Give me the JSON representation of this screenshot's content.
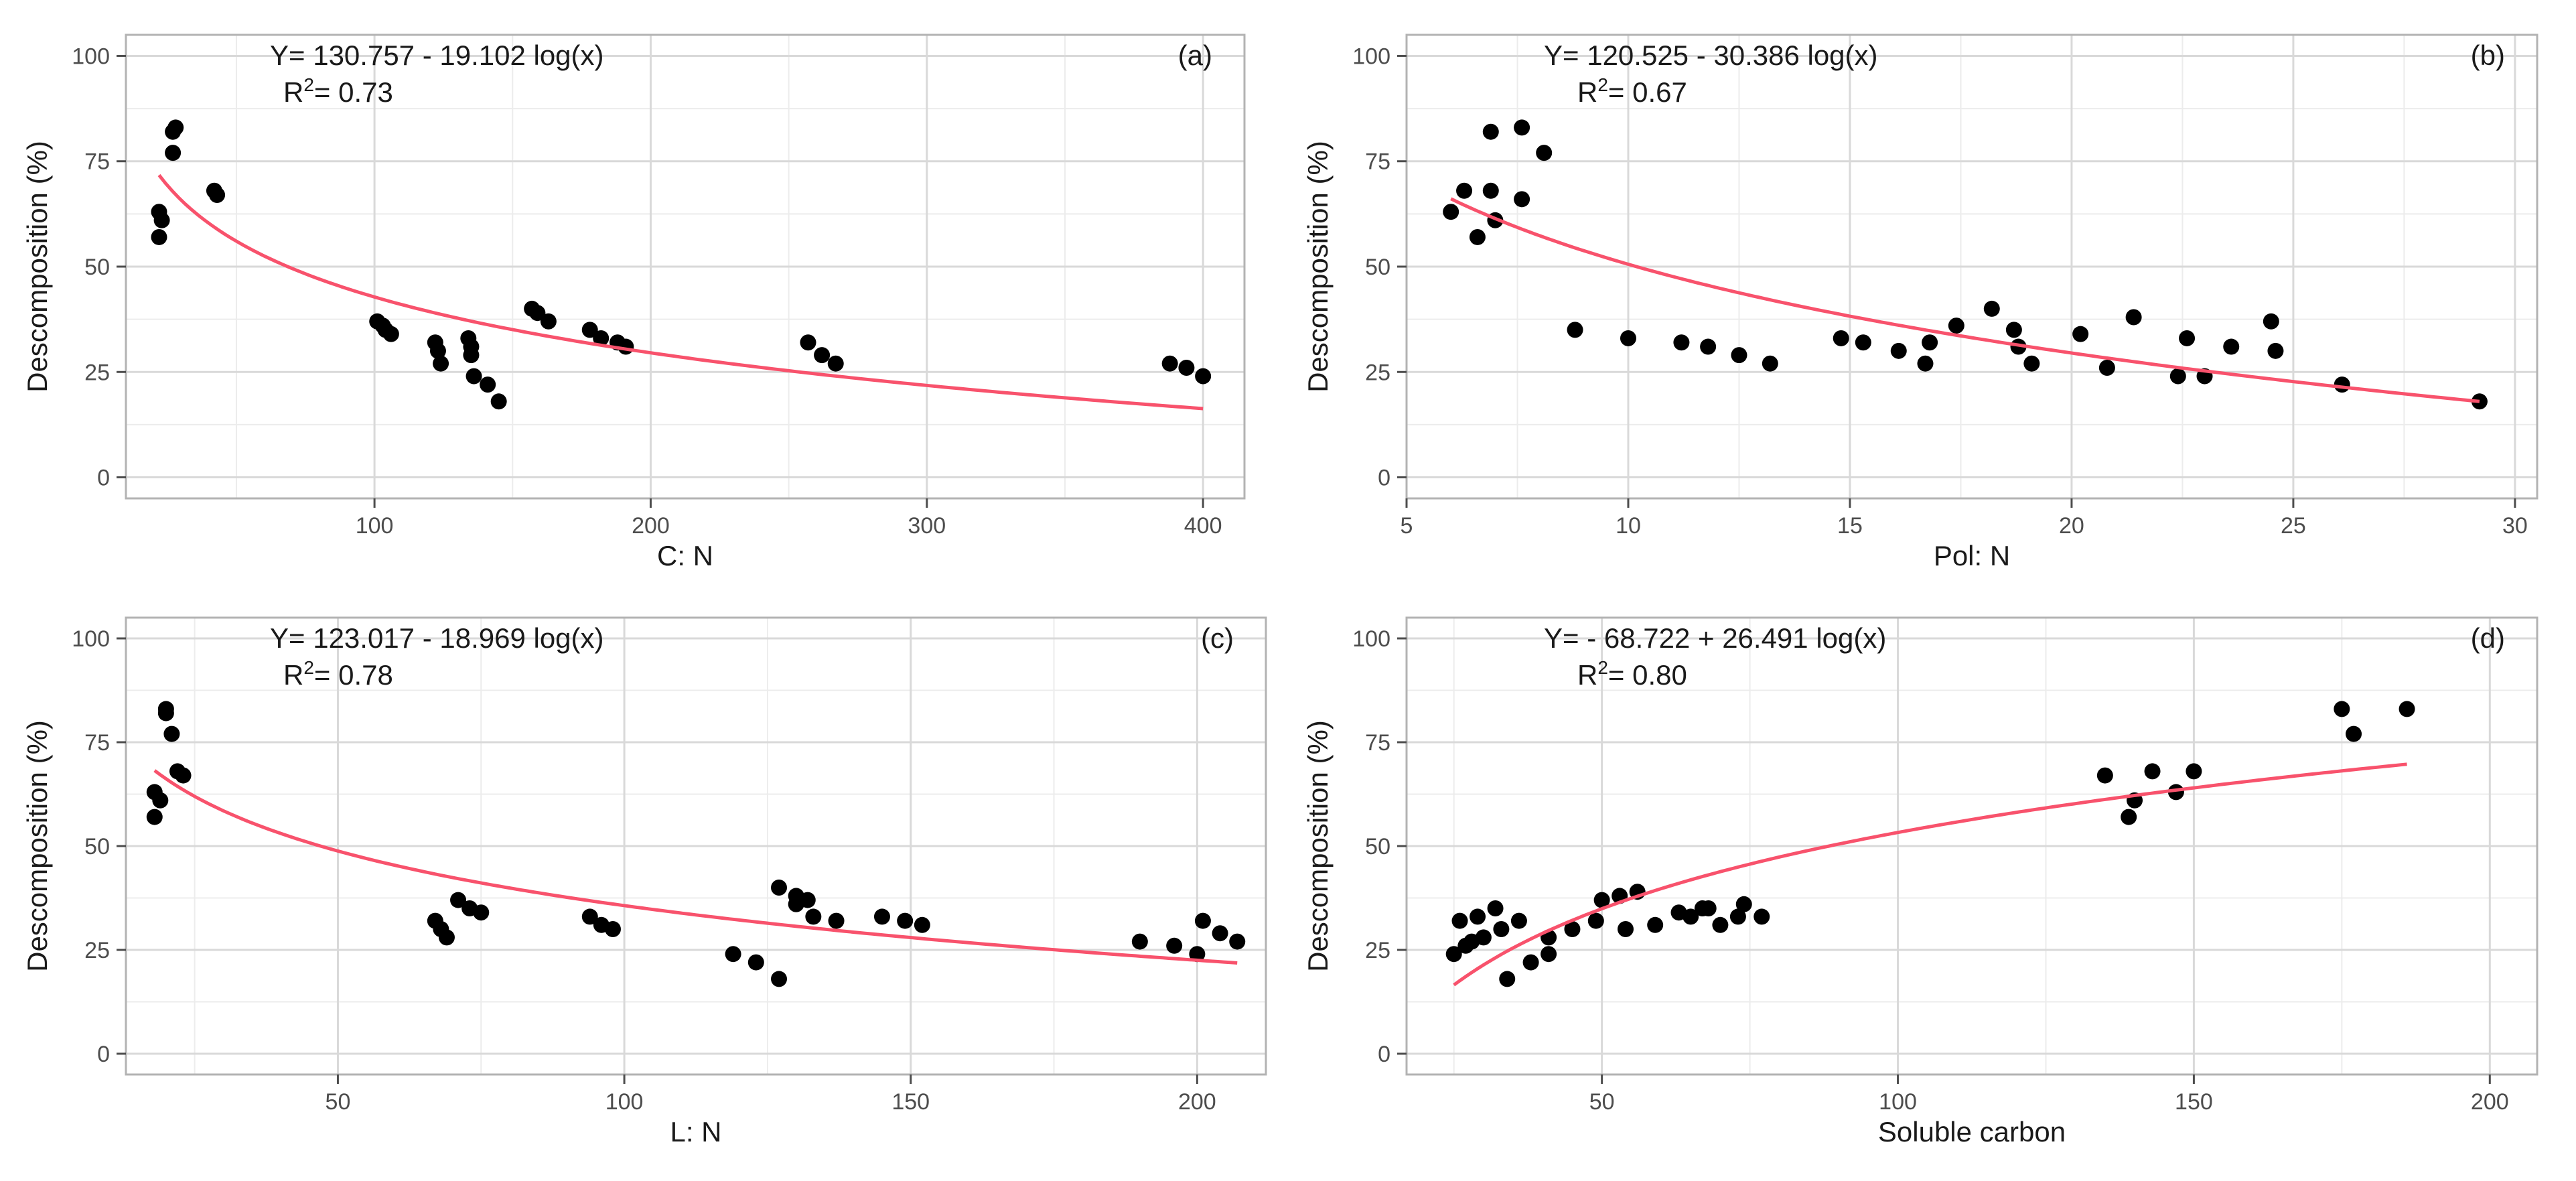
{
  "figure": {
    "yaxis_label": "Descomposition (%)"
  },
  "colors": {
    "points": "#000000",
    "fit": "#f8526c",
    "grid_major": "#d9d9d9",
    "grid_minor": "#ececec",
    "border": "#b3b3b3"
  },
  "chart_data": [
    {
      "type": "scatter",
      "panel": "(a)",
      "xlabel": "C: N",
      "ylabel": "Descomposition (%)",
      "equation": "Y= 130.757 - 19.102 log(x)",
      "r2_label": "R",
      "r2_sup": "2",
      "r2_value": "= 0.73",
      "xlim": [
        10,
        415
      ],
      "ylim": [
        -5,
        105
      ],
      "xticks": [
        100,
        200,
        300,
        400
      ],
      "yticks": [
        0,
        25,
        50,
        75,
        100
      ],
      "fit": {
        "a": 130.757,
        "b": -19.102,
        "x_range": [
          22,
          400
        ]
      },
      "points": [
        [
          22,
          57
        ],
        [
          22,
          63
        ],
        [
          23,
          61
        ],
        [
          27,
          77
        ],
        [
          27,
          82
        ],
        [
          28,
          83
        ],
        [
          42,
          68
        ],
        [
          43,
          67
        ],
        [
          101,
          37
        ],
        [
          103,
          36
        ],
        [
          104,
          35
        ],
        [
          106,
          34
        ],
        [
          122,
          32
        ],
        [
          123,
          30
        ],
        [
          124,
          27
        ],
        [
          134,
          33
        ],
        [
          135,
          31
        ],
        [
          135,
          29
        ],
        [
          136,
          24
        ],
        [
          141,
          22
        ],
        [
          145,
          18
        ],
        [
          157,
          40
        ],
        [
          159,
          39
        ],
        [
          163,
          37
        ],
        [
          178,
          35
        ],
        [
          182,
          33
        ],
        [
          188,
          32
        ],
        [
          191,
          31
        ],
        [
          257,
          32
        ],
        [
          262,
          29
        ],
        [
          267,
          27
        ],
        [
          388,
          27
        ],
        [
          394,
          26
        ],
        [
          400,
          24
        ]
      ]
    },
    {
      "type": "scatter",
      "panel": "(b)",
      "xlabel": "Pol: N",
      "ylabel": "Descomposition (%)",
      "equation": "Y= 120.525 - 30.386 log(x)",
      "r2_label": "R",
      "r2_sup": "2",
      "r2_value": "= 0.67",
      "xlim": [
        5,
        30.5
      ],
      "ylim": [
        -5,
        105
      ],
      "xticks": [
        5,
        10,
        15,
        20,
        25,
        30
      ],
      "yticks": [
        0,
        25,
        50,
        75,
        100
      ],
      "fit": {
        "a": 120.525,
        "b": -30.386,
        "x_range": [
          6,
          29.2
        ]
      },
      "points": [
        [
          6,
          63
        ],
        [
          6.3,
          68
        ],
        [
          6.6,
          57
        ],
        [
          6.9,
          68
        ],
        [
          7,
          61
        ],
        [
          6.9,
          82
        ],
        [
          7.6,
          83
        ],
        [
          7.6,
          66
        ],
        [
          8.1,
          77
        ],
        [
          8.8,
          35
        ],
        [
          10,
          33
        ],
        [
          11.2,
          32
        ],
        [
          11.8,
          31
        ],
        [
          12.5,
          29
        ],
        [
          13.2,
          27
        ],
        [
          14.8,
          33
        ],
        [
          15.3,
          32
        ],
        [
          16.1,
          30
        ],
        [
          16.7,
          27
        ],
        [
          16.8,
          32
        ],
        [
          17.4,
          36
        ],
        [
          18.2,
          40
        ],
        [
          18.7,
          35
        ],
        [
          18.8,
          31
        ],
        [
          19.1,
          27
        ],
        [
          20.2,
          34
        ],
        [
          20.8,
          26
        ],
        [
          21.4,
          38
        ],
        [
          22.4,
          24
        ],
        [
          22.6,
          33
        ],
        [
          23,
          24
        ],
        [
          23.6,
          31
        ],
        [
          24.5,
          37
        ],
        [
          24.6,
          30
        ],
        [
          26.1,
          22
        ],
        [
          29.2,
          18
        ]
      ]
    },
    {
      "type": "scatter",
      "panel": "(c)",
      "xlabel": "L: N",
      "ylabel": "Descomposition (%)",
      "equation": "Y= 123.017 - 18.969 log(x)",
      "r2_label": "R",
      "r2_sup": "2",
      "r2_value": "= 0.78",
      "xlim": [
        13,
        212
      ],
      "ylim": [
        -5,
        105
      ],
      "xticks": [
        50,
        100,
        150,
        200
      ],
      "yticks": [
        0,
        25,
        50,
        75,
        100
      ],
      "fit": {
        "a": 123.017,
        "b": -18.969,
        "x_range": [
          18,
          207
        ]
      },
      "points": [
        [
          18,
          57
        ],
        [
          18,
          63
        ],
        [
          19,
          61
        ],
        [
          20,
          82
        ],
        [
          20,
          83
        ],
        [
          21,
          77
        ],
        [
          22,
          68
        ],
        [
          23,
          67
        ],
        [
          67,
          32
        ],
        [
          68,
          30
        ],
        [
          69,
          28
        ],
        [
          71,
          37
        ],
        [
          73,
          35
        ],
        [
          75,
          34
        ],
        [
          94,
          33
        ],
        [
          96,
          31
        ],
        [
          98,
          30
        ],
        [
          119,
          24
        ],
        [
          123,
          22
        ],
        [
          127,
          18
        ],
        [
          127,
          40
        ],
        [
          130,
          38
        ],
        [
          130,
          36
        ],
        [
          132,
          37
        ],
        [
          133,
          33
        ],
        [
          137,
          32
        ],
        [
          145,
          33
        ],
        [
          149,
          32
        ],
        [
          152,
          31
        ],
        [
          190,
          27
        ],
        [
          196,
          26
        ],
        [
          200,
          24
        ],
        [
          201,
          32
        ],
        [
          204,
          29
        ],
        [
          207,
          27
        ]
      ]
    },
    {
      "type": "scatter",
      "panel": "(d)",
      "xlabel": "Soluble carbon",
      "ylabel": "Descomposition (%)",
      "equation": "Y= - 68.722 + 26.491 log(x)",
      "r2_label": "R",
      "r2_sup": "2",
      "r2_value": "= 0.80",
      "xlim": [
        17,
        208
      ],
      "ylim": [
        -5,
        105
      ],
      "xticks": [
        50,
        100,
        150,
        200
      ],
      "yticks": [
        0,
        25,
        50,
        75,
        100
      ],
      "fit": {
        "a": -68.722,
        "b": 26.491,
        "x_range": [
          25,
          186
        ]
      },
      "points": [
        [
          25,
          24
        ],
        [
          26,
          32
        ],
        [
          27,
          26
        ],
        [
          28,
          27
        ],
        [
          29,
          33
        ],
        [
          30,
          28
        ],
        [
          32,
          35
        ],
        [
          33,
          30
        ],
        [
          34,
          18
        ],
        [
          36,
          32
        ],
        [
          38,
          22
        ],
        [
          41,
          24
        ],
        [
          41,
          28
        ],
        [
          45,
          30
        ],
        [
          49,
          32
        ],
        [
          50,
          37
        ],
        [
          53,
          38
        ],
        [
          54,
          30
        ],
        [
          56,
          39
        ],
        [
          59,
          31
        ],
        [
          63,
          34
        ],
        [
          65,
          33
        ],
        [
          67,
          35
        ],
        [
          68,
          35
        ],
        [
          70,
          31
        ],
        [
          73,
          33
        ],
        [
          74,
          36
        ],
        [
          77,
          33
        ],
        [
          135,
          67
        ],
        [
          139,
          57
        ],
        [
          140,
          61
        ],
        [
          143,
          68
        ],
        [
          147,
          63
        ],
        [
          150,
          68
        ],
        [
          175,
          83
        ],
        [
          177,
          77
        ],
        [
          186,
          83
        ]
      ]
    }
  ]
}
